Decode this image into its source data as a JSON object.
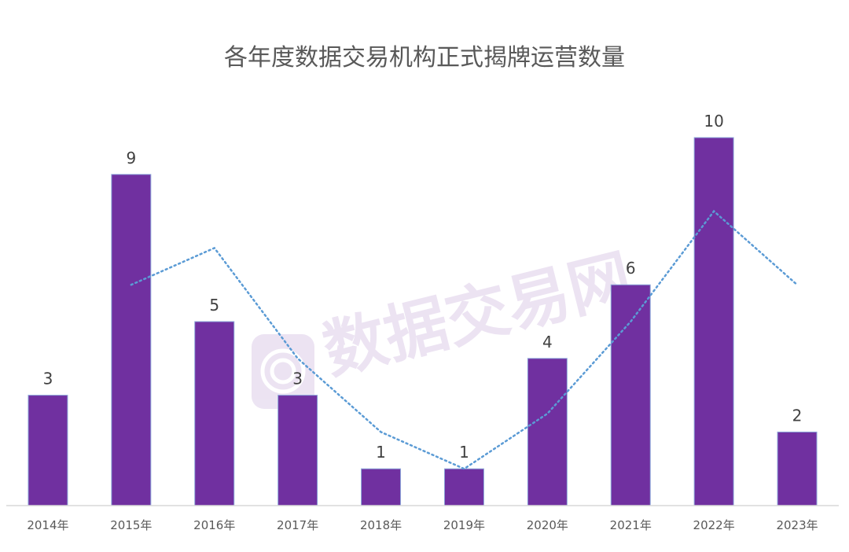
{
  "chart_data": {
    "type": "bar",
    "title": "各年度数据交易机构正式揭牌运营数量",
    "categories": [
      "2014年",
      "2015年",
      "2016年",
      "2017年",
      "2018年",
      "2019年",
      "2020年",
      "2021年",
      "2022年",
      "2023年"
    ],
    "series": [
      {
        "values": [
          3,
          9,
          5,
          3,
          1,
          1,
          4,
          6,
          10,
          2
        ]
      }
    ],
    "trendline": {
      "type": "moving-average",
      "period": 2,
      "style": "dotted"
    },
    "ylim": [
      0,
      10.5
    ],
    "grid": false,
    "show_data_labels": true,
    "colors": {
      "bar": "#7030A0",
      "trend": "#5B9BD5",
      "axis": "#D9D9D9",
      "label": "#404040",
      "tick": "#595959"
    }
  },
  "watermark": {
    "text": "数据交易网"
  }
}
